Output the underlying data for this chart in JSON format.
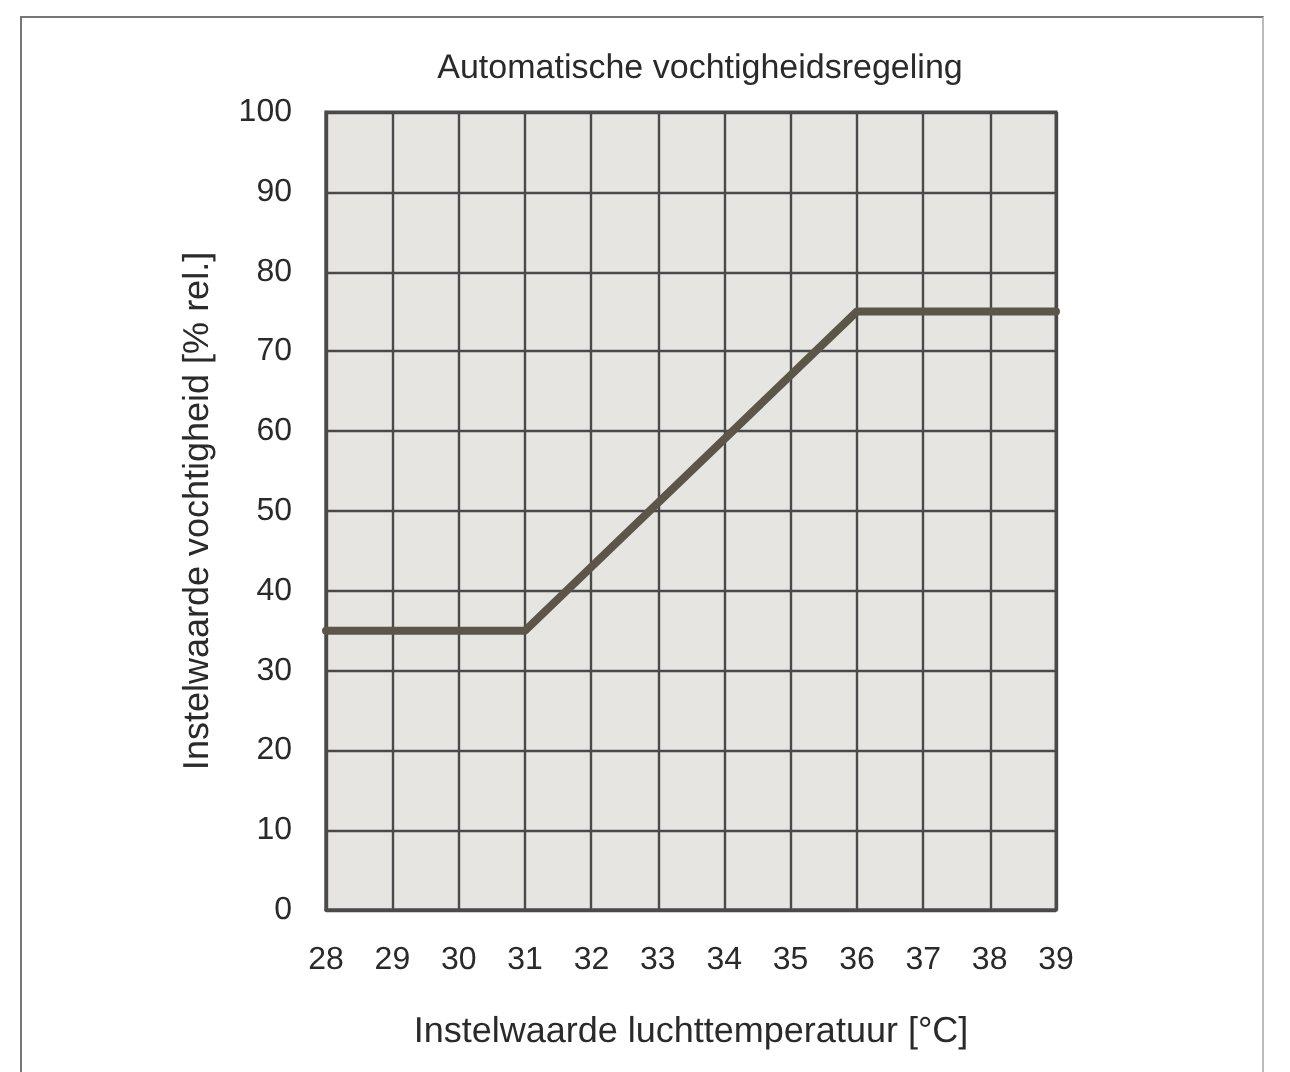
{
  "chart_data": {
    "type": "line",
    "title": "Automatische vochtigheidsregeling",
    "xlabel": "Instelwaarde luchttemperatuur [°C]",
    "ylabel": "Instelwaarde vochtigheid [% rel.]",
    "x": [
      28,
      31,
      36,
      39
    ],
    "values": [
      35,
      35,
      75,
      75
    ],
    "color": "#5b5648",
    "xlim": [
      28,
      39
    ],
    "xticks": [
      28,
      29,
      30,
      31,
      32,
      33,
      34,
      35,
      36,
      37,
      38,
      39
    ],
    "ylim": [
      0,
      100
    ],
    "yticks": [
      0,
      10,
      20,
      30,
      40,
      50,
      60,
      70,
      80,
      90,
      100
    ],
    "grid": true,
    "marker": "none",
    "line_style": "solid"
  }
}
